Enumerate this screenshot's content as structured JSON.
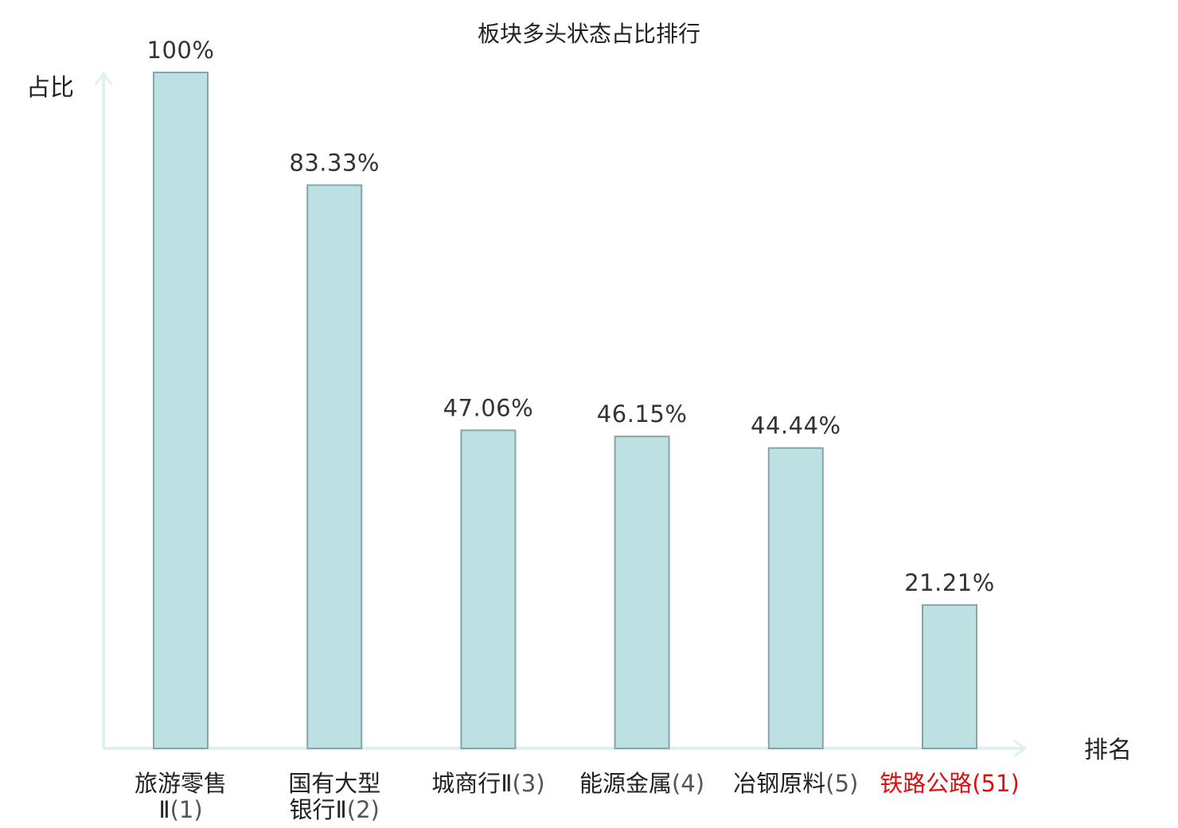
{
  "chart_data": {
    "type": "bar",
    "title": "板块多头状态占比排行",
    "ylabel": "占比",
    "xlabel": "排名",
    "ylim": [
      0,
      100
    ],
    "grid": false,
    "categories": [
      {
        "name": "旅游零售Ⅱ",
        "rank": "(1)",
        "highlight": false
      },
      {
        "name": "国有大型银行Ⅱ",
        "rank": "(2)",
        "highlight": false
      },
      {
        "name": "城商行Ⅱ",
        "rank": "(3)",
        "highlight": false
      },
      {
        "name": "能源金属",
        "rank": "(4)",
        "highlight": false
      },
      {
        "name": "冶钢原料",
        "rank": "(5)",
        "highlight": false
      },
      {
        "name": "铁路公路",
        "rank": "(51)",
        "highlight": true
      }
    ],
    "values": [
      100,
      83.33,
      47.06,
      46.15,
      44.44,
      21.21
    ],
    "data_labels": [
      "100%",
      "83.33%",
      "47.06%",
      "46.15%",
      "44.44%",
      "21.21%"
    ],
    "colors": {
      "bar_fill": "#bde0e3",
      "bar_stroke": "#85a5aa",
      "axis": "#dff0ee",
      "text": "#222222",
      "highlight": "#e01010"
    }
  }
}
